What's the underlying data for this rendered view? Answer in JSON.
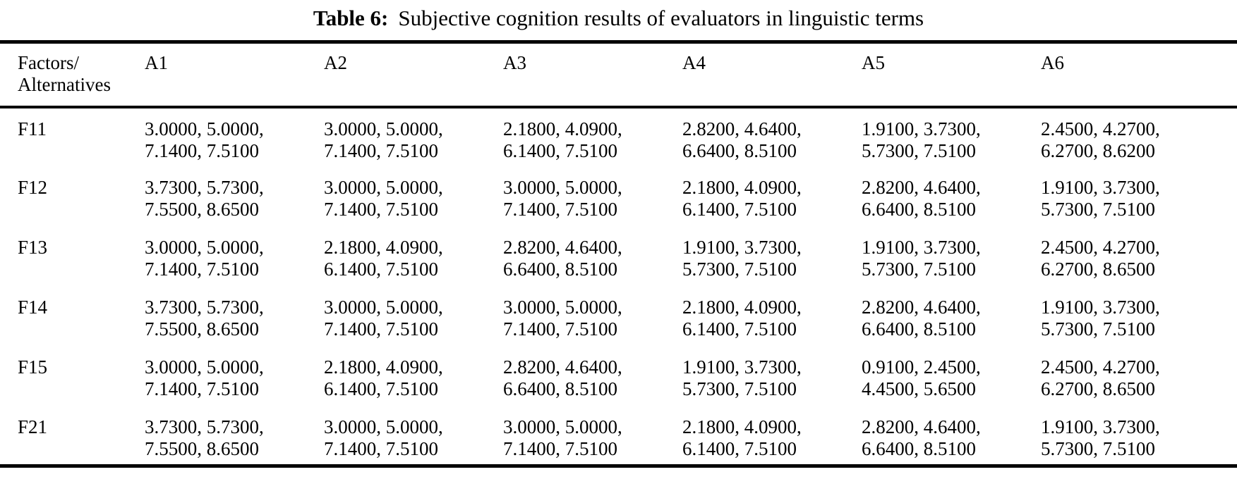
{
  "page": {
    "background_color": "#ffffff",
    "text_color": "#000000"
  },
  "caption": {
    "label": "Table 6:",
    "text": "Subjective cognition results of evaluators in linguistic terms"
  },
  "table": {
    "header": {
      "factors_line1": "Factors/",
      "factors_line2": "Alternatives",
      "columns": [
        "A1",
        "A2",
        "A3",
        "A4",
        "A5",
        "A6"
      ]
    },
    "rows": [
      {
        "factor": "F11",
        "cells": [
          [
            "3.0000, 5.0000,",
            "7.1400, 7.5100"
          ],
          [
            "3.0000, 5.0000,",
            "7.1400, 7.5100"
          ],
          [
            "2.1800, 4.0900,",
            "6.1400, 7.5100"
          ],
          [
            "2.8200, 4.6400,",
            "6.6400, 8.5100"
          ],
          [
            "1.9100, 3.7300,",
            "5.7300, 7.5100"
          ],
          [
            "2.4500, 4.2700,",
            "6.2700, 8.6200"
          ]
        ]
      },
      {
        "factor": "F12",
        "cells": [
          [
            "3.7300, 5.7300,",
            "7.5500, 8.6500"
          ],
          [
            "3.0000, 5.0000,",
            "7.1400, 7.5100"
          ],
          [
            "3.0000, 5.0000,",
            "7.1400, 7.5100"
          ],
          [
            "2.1800, 4.0900,",
            "6.1400, 7.5100"
          ],
          [
            "2.8200, 4.6400,",
            "6.6400, 8.5100"
          ],
          [
            "1.9100, 3.7300,",
            "5.7300, 7.5100"
          ]
        ]
      },
      {
        "factor": "F13",
        "cells": [
          [
            "3.0000, 5.0000,",
            "7.1400, 7.5100"
          ],
          [
            "2.1800, 4.0900,",
            "6.1400, 7.5100"
          ],
          [
            "2.8200, 4.6400,",
            "6.6400, 8.5100"
          ],
          [
            "1.9100, 3.7300,",
            "5.7300, 7.5100"
          ],
          [
            "1.9100, 3.7300,",
            "5.7300, 7.5100"
          ],
          [
            "2.4500, 4.2700,",
            "6.2700, 8.6500"
          ]
        ]
      },
      {
        "factor": "F14",
        "cells": [
          [
            "3.7300, 5.7300,",
            "7.5500, 8.6500"
          ],
          [
            "3.0000, 5.0000,",
            "7.1400, 7.5100"
          ],
          [
            "3.0000, 5.0000,",
            "7.1400, 7.5100"
          ],
          [
            "2.1800, 4.0900,",
            "6.1400, 7.5100"
          ],
          [
            "2.8200, 4.6400,",
            "6.6400, 8.5100"
          ],
          [
            "1.9100, 3.7300,",
            "5.7300, 7.5100"
          ]
        ]
      },
      {
        "factor": "F15",
        "cells": [
          [
            "3.0000, 5.0000,",
            "7.1400, 7.5100"
          ],
          [
            "2.1800, 4.0900,",
            "6.1400, 7.5100"
          ],
          [
            "2.8200, 4.6400,",
            "6.6400, 8.5100"
          ],
          [
            "1.9100, 3.7300,",
            "5.7300, 7.5100"
          ],
          [
            "0.9100, 2.4500,",
            "4.4500, 5.6500"
          ],
          [
            "2.4500, 4.2700,",
            "6.2700, 8.6500"
          ]
        ]
      },
      {
        "factor": "F21",
        "cells": [
          [
            "3.7300, 5.7300,",
            "7.5500, 8.6500"
          ],
          [
            "3.0000, 5.0000,",
            "7.1400, 7.5100"
          ],
          [
            "3.0000, 5.0000,",
            "7.1400, 7.5100"
          ],
          [
            "2.1800, 4.0900,",
            "6.1400, 7.5100"
          ],
          [
            "2.8200, 4.6400,",
            "6.6400, 8.5100"
          ],
          [
            "1.9100, 3.7300,",
            "5.7300, 7.5100"
          ]
        ]
      }
    ]
  }
}
